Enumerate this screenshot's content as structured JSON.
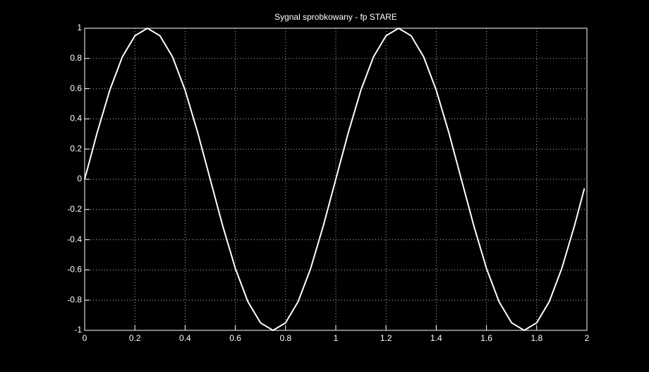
{
  "chart_data": {
    "type": "line",
    "title": "Sygnal sprobkowany - fp STARE",
    "x": [
      0,
      0.05,
      0.1,
      0.15,
      0.2,
      0.25,
      0.3,
      0.35,
      0.4,
      0.45,
      0.5,
      0.55,
      0.6,
      0.65,
      0.7,
      0.75,
      0.8,
      0.85,
      0.9,
      0.95,
      1,
      1.05,
      1.1,
      1.15,
      1.2,
      1.25,
      1.3,
      1.35,
      1.4,
      1.45,
      1.5,
      1.55,
      1.6,
      1.65,
      1.7,
      1.75,
      1.8,
      1.85,
      1.9,
      1.95,
      1.99
    ],
    "values": [
      0,
      0.31,
      0.59,
      0.81,
      0.95,
      1,
      0.95,
      0.81,
      0.59,
      0.31,
      0,
      -0.31,
      -0.59,
      -0.81,
      -0.95,
      -1,
      -0.95,
      -0.81,
      -0.59,
      -0.31,
      0,
      0.31,
      0.59,
      0.81,
      0.95,
      1,
      0.95,
      0.81,
      0.59,
      0.31,
      0,
      -0.31,
      -0.59,
      -0.81,
      -0.95,
      -1,
      -0.95,
      -0.81,
      -0.59,
      -0.31,
      -0.06
    ],
    "color": "#ffffff",
    "xlim": [
      0,
      2
    ],
    "xticks": [
      0,
      0.2,
      0.4,
      0.6,
      0.8,
      1,
      1.2,
      1.4,
      1.6,
      1.8,
      2
    ],
    "ylim": [
      -1,
      1
    ],
    "yticks": [
      -1,
      -0.8,
      -0.6,
      -0.4,
      -0.2,
      0,
      0.2,
      0.4,
      0.6,
      0.8,
      1
    ],
    "grid": true
  }
}
